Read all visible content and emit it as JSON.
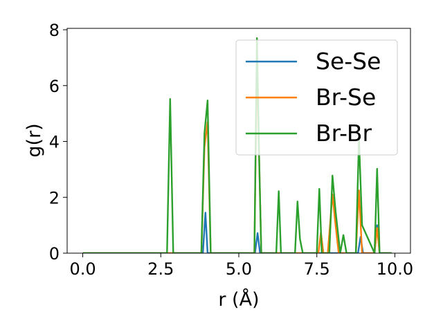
{
  "chart_data": {
    "type": "line",
    "title": "",
    "xlabel": "r (Å)",
    "ylabel": "g(r)",
    "xlim": [
      -0.5,
      10.5
    ],
    "ylim": [
      0,
      8.05
    ],
    "xticks": [
      0.0,
      2.5,
      5.0,
      7.5,
      10.0
    ],
    "xtick_labels": [
      "0.0",
      "2.5",
      "5.0",
      "7.5",
      "10.0"
    ],
    "yticks": [
      0,
      2,
      4,
      6,
      8
    ],
    "ytick_labels": [
      "0",
      "2",
      "4",
      "6",
      "8"
    ],
    "grid": false,
    "legend": "top-right",
    "series": [
      {
        "name": "Se-Se",
        "color": "#1f77b4",
        "x": [
          0.0,
          3.85,
          3.93,
          4.0,
          5.52,
          5.6,
          5.68,
          8.82,
          8.9,
          8.98,
          9.35,
          9.43,
          9.51,
          9.9
        ],
        "y": [
          0,
          0,
          1.45,
          0,
          0,
          0.72,
          0,
          0,
          0.58,
          0,
          0,
          1.0,
          0,
          0
        ]
      },
      {
        "name": "Br-Se",
        "color": "#ff7f0e",
        "x": [
          0.0,
          3.8,
          3.9,
          4.0,
          4.1,
          5.5,
          5.58,
          5.65,
          5.72,
          7.55,
          7.63,
          7.71,
          7.85,
          8.0,
          8.1,
          8.2,
          8.75,
          8.85,
          8.95,
          9.35,
          9.43,
          9.51,
          9.9
        ],
        "y": [
          0,
          0,
          3.8,
          4.7,
          0,
          0,
          7.0,
          3.5,
          0,
          0,
          0.75,
          0,
          0,
          2.1,
          1.0,
          0,
          0,
          2.25,
          0,
          0,
          0.9,
          0,
          0
        ]
      },
      {
        "name": "Br-Br",
        "color": "#2ca02c",
        "x": [
          0.0,
          2.7,
          2.8,
          2.9,
          3.8,
          3.9,
          4.0,
          4.1,
          5.5,
          5.58,
          5.65,
          5.72,
          6.2,
          6.28,
          6.35,
          6.8,
          6.88,
          6.96,
          7.05,
          7.5,
          7.58,
          7.66,
          7.9,
          8.0,
          8.1,
          8.25,
          8.35,
          8.45,
          8.55,
          8.75,
          8.85,
          8.95,
          9.35,
          9.43,
          9.51,
          9.9
        ],
        "y": [
          0,
          0,
          5.52,
          0,
          0,
          4.3,
          5.47,
          0,
          0,
          7.7,
          3.5,
          0,
          0,
          2.22,
          0,
          0,
          1.85,
          0.5,
          0,
          0,
          2.3,
          0,
          0,
          2.78,
          1.5,
          0,
          0.65,
          0,
          0,
          0,
          4.1,
          1.0,
          0,
          3.02,
          0,
          0
        ]
      }
    ]
  }
}
